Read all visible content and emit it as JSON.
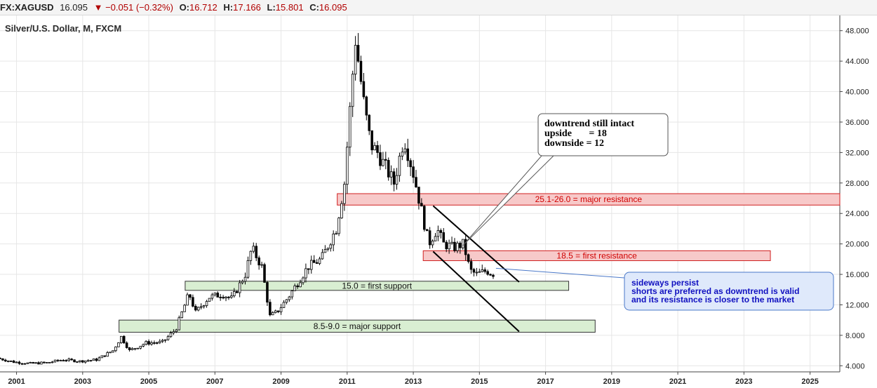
{
  "header": {
    "symbol": "FX:XAGUSD",
    "last": "16.095",
    "arrow": "▼",
    "change": "−0.051 (−0.32%)",
    "open_label": "O:",
    "open_value": "16.712",
    "high_label": "H:",
    "high_value": "17.166",
    "low_label": "L:",
    "low_value": "15.801",
    "close_label": "C:",
    "close_value": "16.095"
  },
  "chart_caption": "Silver/U.S. Dollar, M, FXCM",
  "colors": {
    "resistance_fill": "#f7c9c9",
    "resistance_border": "#d02020",
    "resistance_text": "#d00000",
    "support_fill": "#d9eed2",
    "support_border": "#333333",
    "note_fill": "#dfe9fb",
    "note_border": "#4a78c8",
    "note_text": "#1010c0",
    "candle_up": "#ffffff",
    "candle_down": "#000000"
  },
  "chart_data": {
    "type": "candlestick",
    "title": "Silver/U.S. Dollar, M, FXCM",
    "xlim": [
      2000.5,
      2025.9
    ],
    "ylim": [
      3.2,
      50
    ],
    "x_ticks": [
      "2001",
      "2003",
      "2005",
      "2007",
      "2009",
      "2011",
      "2013",
      "2015",
      "2017",
      "2019",
      "2021",
      "2023",
      "2025"
    ],
    "y_ticks": [
      "4.000",
      "8.000",
      "12.000",
      "16.000",
      "20.000",
      "24.000",
      "28.000",
      "32.000",
      "36.000",
      "40.000",
      "44.000",
      "48.000"
    ],
    "grid": true,
    "anchors": [
      [
        2000.5,
        5.0
      ],
      [
        2001.0,
        4.5
      ],
      [
        2001.5,
        4.3
      ],
      [
        2002.0,
        4.4
      ],
      [
        2002.5,
        4.8
      ],
      [
        2003.0,
        4.6
      ],
      [
        2003.5,
        4.8
      ],
      [
        2004.0,
        6.0
      ],
      [
        2004.25,
        7.8
      ],
      [
        2004.5,
        6.0
      ],
      [
        2005.0,
        7.0
      ],
      [
        2005.5,
        7.1
      ],
      [
        2005.9,
        8.8
      ],
      [
        2006.3,
        13.5
      ],
      [
        2006.5,
        11.0
      ],
      [
        2006.9,
        13.0
      ],
      [
        2007.3,
        13.4
      ],
      [
        2007.6,
        12.8
      ],
      [
        2008.0,
        16.0
      ],
      [
        2008.2,
        19.5
      ],
      [
        2008.5,
        17.0
      ],
      [
        2008.75,
        10.5
      ],
      [
        2008.95,
        11.0
      ],
      [
        2009.3,
        13.0
      ],
      [
        2009.9,
        17.0
      ],
      [
        2010.3,
        18.0
      ],
      [
        2010.75,
        22.0
      ],
      [
        2011.0,
        28.0
      ],
      [
        2011.33,
        47.0
      ],
      [
        2011.6,
        38.0
      ],
      [
        2011.8,
        33.0
      ],
      [
        2012.0,
        32.0
      ],
      [
        2012.5,
        28.0
      ],
      [
        2012.8,
        34.0
      ],
      [
        2013.1,
        29.0
      ],
      [
        2013.35,
        24.0
      ],
      [
        2013.55,
        20.0
      ],
      [
        2013.8,
        22.0
      ],
      [
        2014.0,
        20.0
      ],
      [
        2014.3,
        19.5
      ],
      [
        2014.6,
        20.0
      ],
      [
        2014.8,
        16.5
      ],
      [
        2015.0,
        16.0
      ],
      [
        2015.3,
        16.5
      ],
      [
        2015.45,
        16.1
      ]
    ],
    "trend_channel": {
      "upper": [
        [
          2013.6,
          25.0
        ],
        [
          2016.2,
          15.0
        ]
      ],
      "lower": [
        [
          2013.6,
          19.0
        ],
        [
          2016.2,
          8.5
        ]
      ]
    },
    "zones": [
      {
        "x": [
          2010.7,
          2025.9
        ],
        "y": [
          25.1,
          26.6
        ],
        "kind": "resistance",
        "label": "25.1-26.0 =  major resistance"
      },
      {
        "x": [
          2013.3,
          2023.8
        ],
        "y": [
          17.8,
          19.1
        ],
        "kind": "resistance",
        "label": "18.5 = first resistance"
      },
      {
        "x": [
          2006.1,
          2017.7
        ],
        "y": [
          13.9,
          15.1
        ],
        "kind": "support",
        "label": "15.0 = first support"
      },
      {
        "x": [
          2004.1,
          2018.5
        ],
        "y": [
          8.4,
          10.0
        ],
        "kind": "support",
        "label": "8.5-9.0 = major support"
      }
    ],
    "callouts": {
      "downtrend": {
        "lines": [
          "downtrend still intact",
          "upside       = 18",
          "downside = 12"
        ],
        "pointer_y": 19.8,
        "pointer_x": 2014.5
      },
      "sideways": {
        "lines": [
          "sideways persist",
          "shorts are preferred as downtrend is valid",
          "and its resistance is closer to the market"
        ],
        "pointer_x": 2015.5,
        "pointer_y": 16.8
      }
    }
  }
}
